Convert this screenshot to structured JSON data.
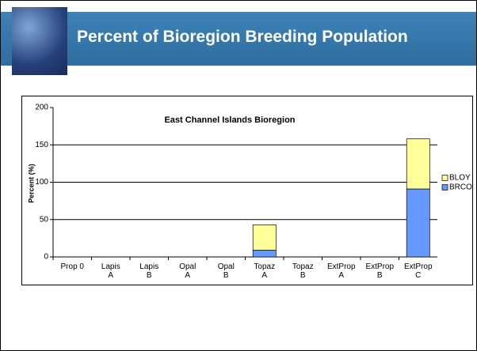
{
  "title": "Percent of Bioregion Breeding Population",
  "chart_data": {
    "type": "stacked_bar",
    "title": "East Channel Islands Bioregion",
    "y_label": "Percent (%)",
    "categories": [
      "Prop 0",
      "Lapis\nA",
      "Lapis\nB",
      "Opal\nA",
      "Opal\nB",
      "Topaz\nA",
      "Topaz\nB",
      "ExtProp\nA",
      "ExtProp\nB",
      "ExtProp\nC"
    ],
    "series": [
      {
        "name": "BLOY",
        "color": "#ffff99",
        "values": [
          0,
          0,
          0,
          0,
          0,
          34,
          0,
          0,
          0,
          67
        ]
      },
      {
        "name": "BRCO",
        "color": "#6699ff",
        "values": [
          0,
          0,
          0,
          0,
          0,
          9,
          0,
          0,
          0,
          91
        ]
      }
    ],
    "ylim": [
      0,
      200
    ],
    "yticks": [
      0,
      50,
      100,
      150,
      200
    ],
    "grid": true,
    "legend": "right"
  }
}
